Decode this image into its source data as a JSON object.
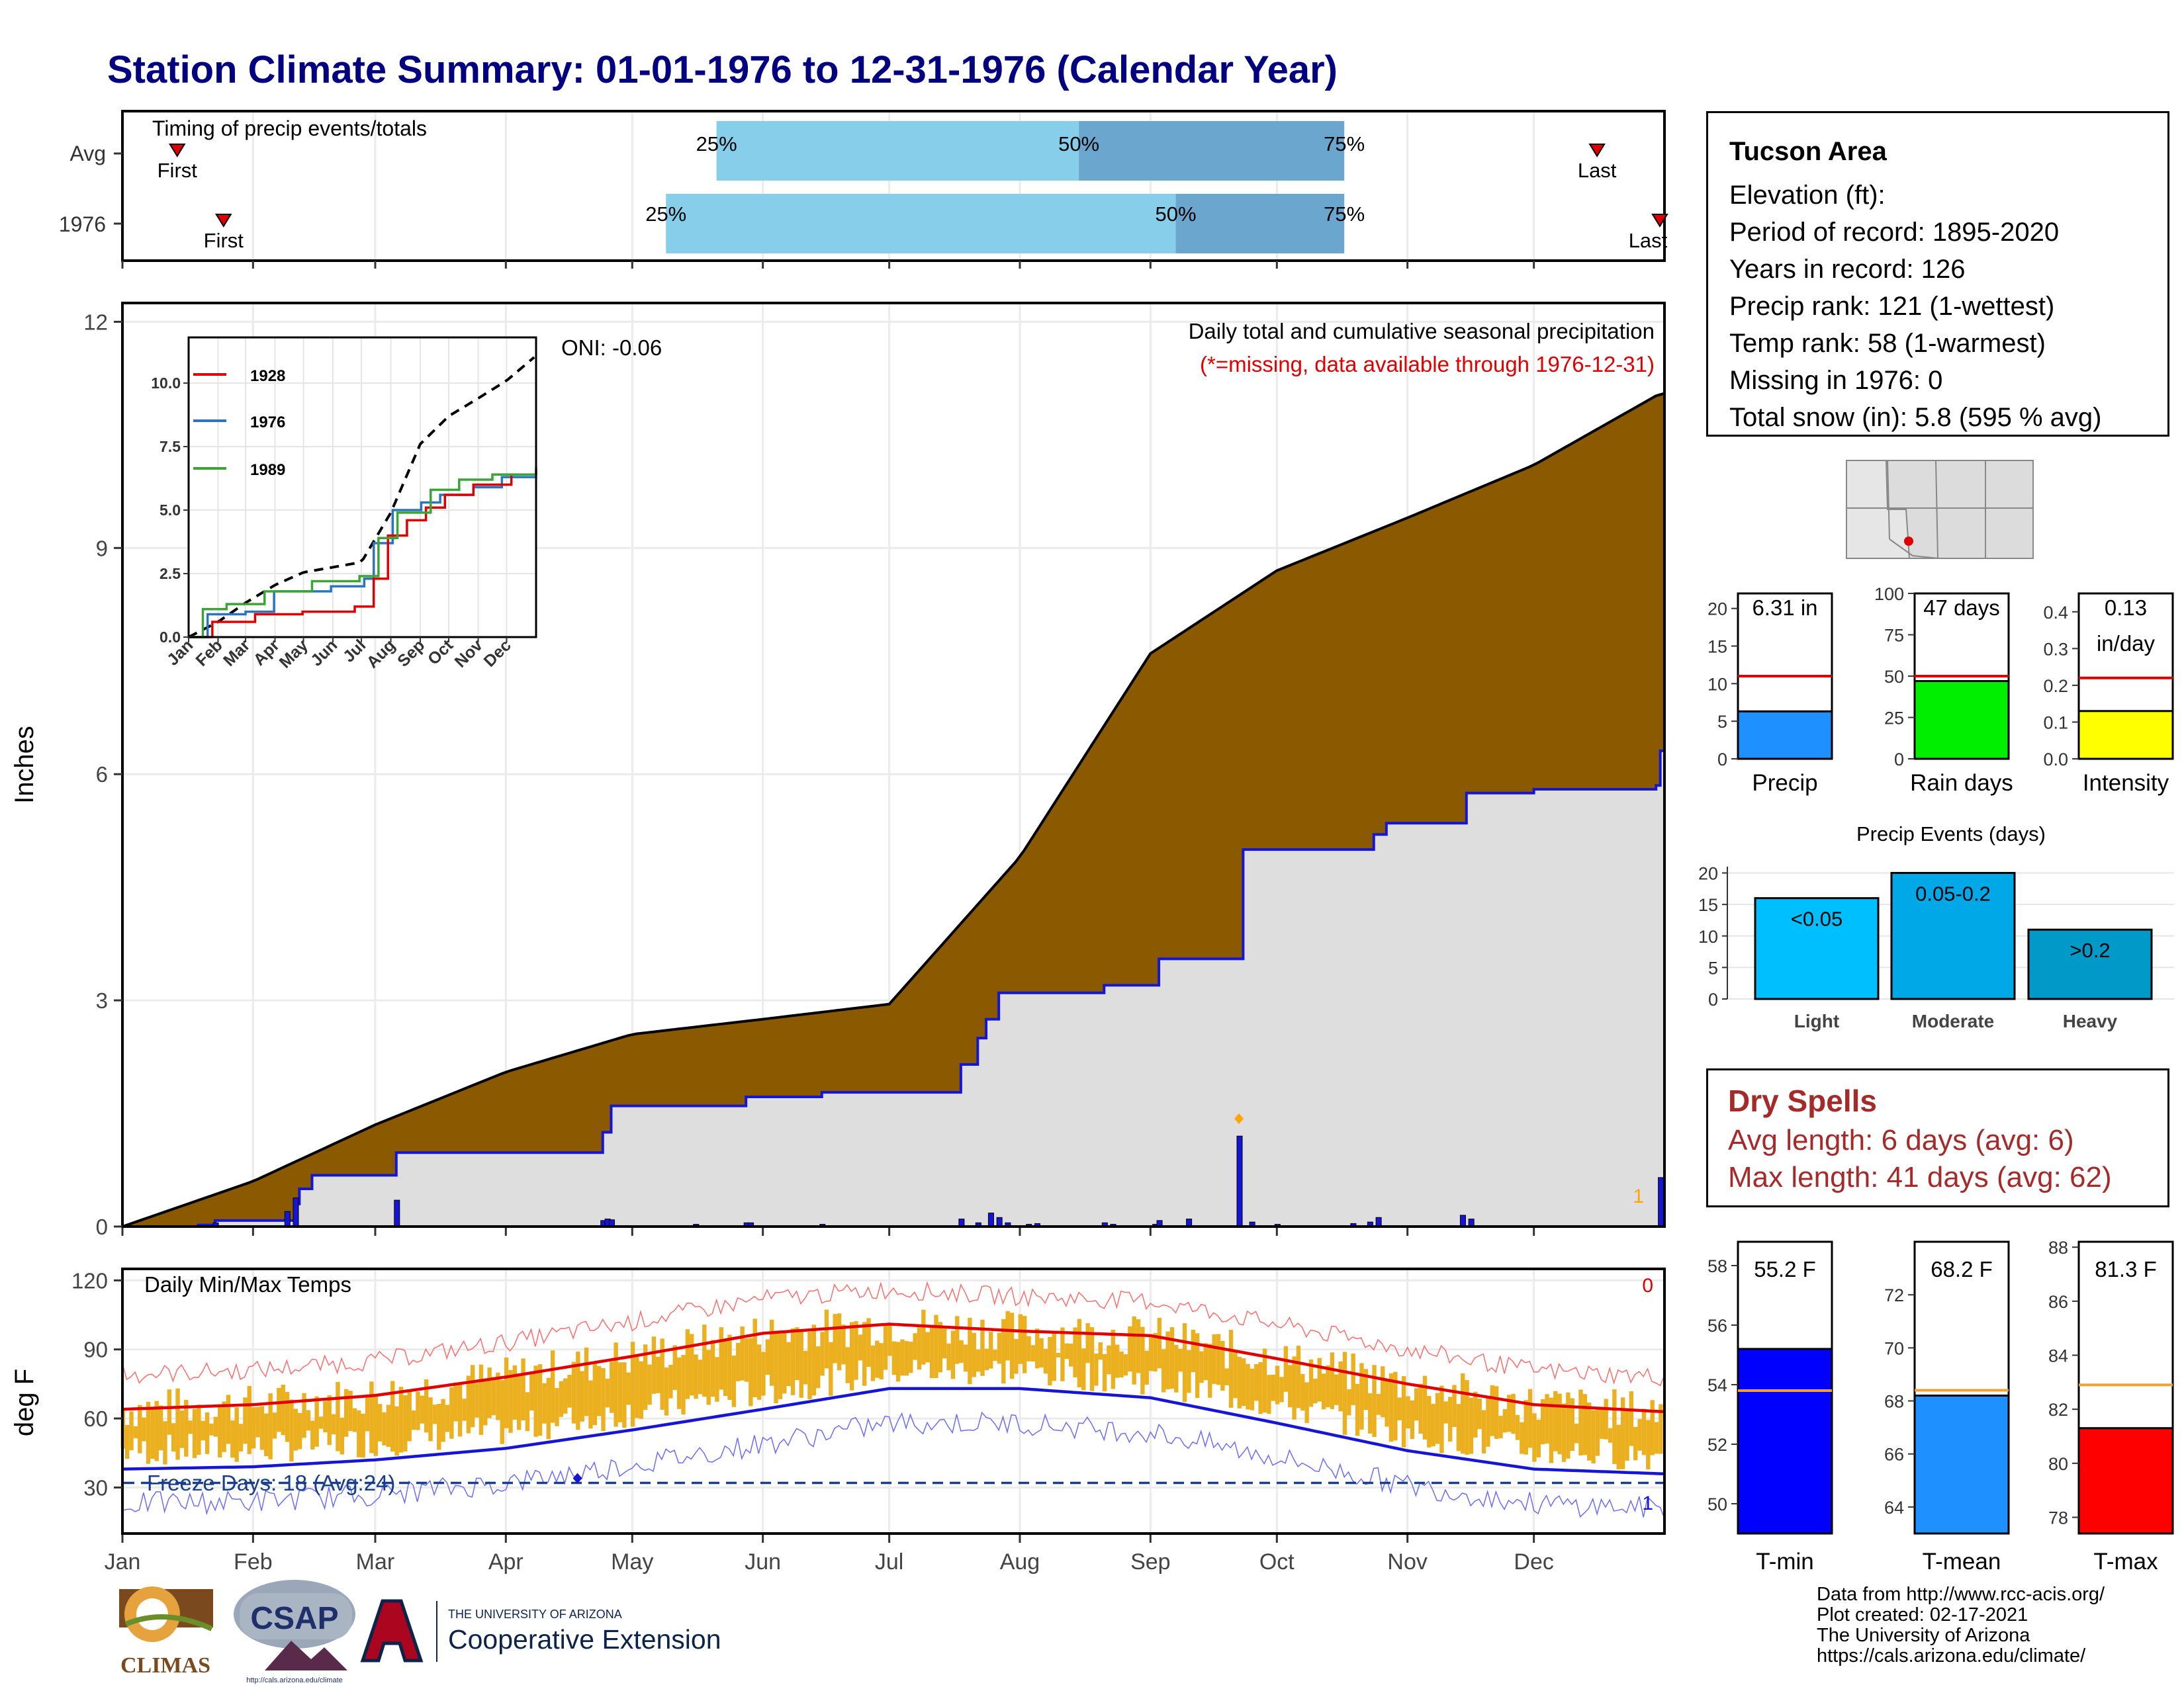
{
  "title": "Station Climate Summary: 01-01-1976 to 12-31-1976 (Calendar Year)",
  "colors": {
    "title": "#000080",
    "cumulative_fill": "#8b5a00",
    "avg_fill": "#dedede",
    "avg_line": "#1515d6",
    "bar_light": "#87ceeb",
    "bar_dark": "#6ba6cf",
    "dry_text": "#a52a2a"
  },
  "timing_panel": {
    "label": "Timing of precip events/totals",
    "rows": [
      {
        "label": "Avg",
        "first": "First",
        "last": "Last",
        "p25": "25%",
        "p50": "50%",
        "p75": "75%",
        "first_day": 13,
        "p25_day": 141,
        "p50_day": 227,
        "p75_day": 290,
        "last_day": 350
      },
      {
        "label": "1976",
        "first": "First",
        "last": "Last",
        "p25": "25%",
        "p50": "50%",
        "p75": "75%",
        "first_day": 24,
        "p25_day": 129,
        "p50_day": 250,
        "p75_day": 290,
        "last_day": 372
      }
    ]
  },
  "info": {
    "station": "Tucson Area",
    "lines": [
      "Elevation (ft):",
      "Period of record: 1895-2020",
      "Years in record: 126",
      "Precip rank: 121 (1-wettest)",
      "Temp rank: 58 (1-warmest)",
      "Missing in 1976: 0",
      "Total snow (in): 5.8 (595 % avg)"
    ]
  },
  "dry_spells": {
    "title": "Dry Spells",
    "avg": "Avg length: 6 days (avg: 6)",
    "max": "Max length: 41 days (avg: 62)"
  },
  "main_chart": {
    "ylabel": "Inches",
    "annotation": "Daily total and cumulative seasonal precipitation",
    "missing_note": "(*=missing, data available through 1976-12-31)",
    "oni": "ONI: -0.06",
    "corner_count": "1",
    "yticks": [
      "0",
      "3",
      "6",
      "9",
      "12"
    ]
  },
  "temp_chart": {
    "ylabel": "deg F",
    "label": "Daily Min/Max Temps",
    "freeze": "Freeze Days: 18 (Avg:24)",
    "count_hi": "0",
    "count_lo": "1",
    "yticks": [
      "30",
      "60",
      "90",
      "120"
    ]
  },
  "months": [
    "Jan",
    "Feb",
    "Mar",
    "Apr",
    "May",
    "Jun",
    "Jul",
    "Aug",
    "Sep",
    "Oct",
    "Nov",
    "Dec"
  ],
  "inset": {
    "legend": [
      "1928",
      "1976",
      "1989"
    ],
    "yticks": [
      "0.0",
      "2.5",
      "5.0",
      "7.5",
      "10.0"
    ],
    "months": [
      "Jan",
      "Feb",
      "Mar",
      "Apr",
      "May",
      "Jun",
      "Jul",
      "Aug",
      "Sep",
      "Oct",
      "Nov",
      "Dec"
    ]
  },
  "small_bars": {
    "precip": {
      "value_label": "6.31 in",
      "axis_label": "Precip",
      "value": 6.31,
      "avg": 11,
      "ymax": 22,
      "yticks": [
        "0",
        "5",
        "10",
        "15",
        "20"
      ]
    },
    "rain_days": {
      "value_label": "47 days",
      "axis_label": "Rain days",
      "value": 47,
      "avg": 50,
      "ymax": 100,
      "yticks": [
        "0",
        "25",
        "50",
        "75",
        "100"
      ]
    },
    "intensity": {
      "value_label_1": "0.13",
      "value_label_2": "in/day",
      "axis_label": "Intensity",
      "value": 0.13,
      "avg": 0.22,
      "ymax": 0.45,
      "yticks": [
        "0.0",
        "0.1",
        "0.2",
        "0.3",
        "0.4"
      ]
    }
  },
  "events": {
    "title": "Precip Events (days)",
    "categories": [
      "Light",
      "Moderate",
      "Heavy"
    ],
    "labels": [
      "<0.05",
      "0.05-0.2",
      ">0.2"
    ],
    "values": [
      16,
      20,
      11
    ],
    "yticks": [
      "0",
      "5",
      "10",
      "15",
      "20"
    ]
  },
  "temp_bars": {
    "tmin": {
      "value_label": "55.2 F",
      "axis_label": "T-min",
      "value": 55.2,
      "avg": 53.8,
      "ymin": 49,
      "ymax": 58.8,
      "yticks": [
        "50",
        "52",
        "54",
        "56",
        "58"
      ]
    },
    "tmean": {
      "value_label": "68.2 F",
      "axis_label": "T-mean",
      "value": 68.2,
      "avg": 68.4,
      "ymin": 63,
      "ymax": 74,
      "yticks": [
        "64",
        "66",
        "68",
        "70",
        "72"
      ]
    },
    "tmax": {
      "value_label": "81.3 F",
      "axis_label": "T-max",
      "value": 81.3,
      "avg": 82.9,
      "ymin": 77.4,
      "ymax": 88.2,
      "yticks": [
        "78",
        "80",
        "82",
        "84",
        "86",
        "88"
      ]
    }
  },
  "logos": {
    "climas": "CLIMAS",
    "csap": "CSAP",
    "csap_url": "http://cals.arizona.edu/climate",
    "ua_small": "THE UNIVERSITY OF ARIZONA",
    "ua_big": "Cooperative Extension"
  },
  "credits": [
    "Data from http://www.rcc-acis.org/",
    "Plot created: 02-17-2021",
    "The University of Arizona",
    "https://cals.arizona.edu/climate/"
  ],
  "chart_data": [
    {
      "type": "line",
      "title": "Daily total and cumulative seasonal precipitation",
      "ylabel": "Inches",
      "ylim": [
        0,
        12
      ],
      "x_days": [
        0,
        31,
        60,
        91,
        121,
        152,
        182,
        213,
        244,
        274,
        305,
        335,
        365
      ],
      "series": [
        {
          "name": "cumulative_avg",
          "values": [
            0,
            0.6,
            1.35,
            2.05,
            2.55,
            2.75,
            2.95,
            4.9,
            7.6,
            8.7,
            9.4,
            10.1,
            11.05
          ]
        },
        {
          "name": "cumulative_1976",
          "values": [
            0,
            0.05,
            0.98,
            0.98,
            1.6,
            1.78,
            1.78,
            3.1,
            3.55,
            5.0,
            5.8,
            5.85,
            6.31
          ]
        }
      ]
    },
    {
      "type": "line",
      "title": "Daily Min/Max Temps",
      "ylabel": "deg F",
      "ylim": [
        10,
        120
      ],
      "x_days": [
        0,
        31,
        60,
        91,
        121,
        152,
        182,
        213,
        244,
        274,
        305,
        335,
        365
      ],
      "series": [
        {
          "name": "avg_max",
          "values": [
            64,
            66,
            70,
            78,
            87,
            97,
            101,
            98,
            96,
            86,
            75,
            66,
            63
          ]
        },
        {
          "name": "avg_min",
          "values": [
            38,
            39,
            42,
            47,
            55,
            64,
            73,
            73,
            69,
            58,
            46,
            38,
            36
          ]
        }
      ]
    }
  ]
}
